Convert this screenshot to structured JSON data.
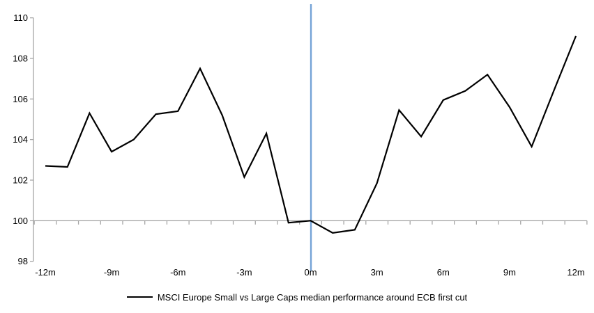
{
  "chart_data": {
    "type": "line",
    "title": "",
    "xlabel": "",
    "ylabel": "",
    "x_months": [
      -12,
      -11,
      -10,
      -9,
      -8,
      -7,
      -6,
      -5,
      -4,
      -3,
      -2,
      -1,
      0,
      1,
      2,
      3,
      4,
      5,
      6,
      7,
      8,
      9,
      10,
      11,
      12
    ],
    "series": [
      {
        "name": "MSCI Europe Small vs Large Caps median performance around ECB first cut",
        "color": "#000000",
        "values": [
          102.7,
          102.65,
          105.3,
          103.4,
          104.0,
          105.25,
          105.4,
          107.5,
          105.2,
          102.15,
          104.3,
          99.9,
          100.0,
          99.4,
          99.55,
          101.85,
          105.45,
          104.15,
          105.95,
          106.4,
          107.2,
          105.6,
          103.65,
          106.4,
          109.1
        ]
      }
    ],
    "y_axis": {
      "min": 98,
      "max": 110,
      "tick_step": 2,
      "tick_labels": [
        "98",
        "100",
        "102",
        "104",
        "106",
        "108",
        "110"
      ]
    },
    "x_axis": {
      "tick_label_months": [
        -12,
        -9,
        -6,
        -3,
        0,
        3,
        6,
        9,
        12
      ],
      "tick_labels": [
        "-12m",
        "-9m",
        "-6m",
        "-3m",
        "0m",
        "3m",
        "6m",
        "9m",
        "12m"
      ],
      "axis_at_value": 100
    },
    "event_line": {
      "at_month": 0,
      "color": "#74A3D6"
    },
    "colors": {
      "axis": "#A6A6A6",
      "series": "#000000",
      "event_line": "#74A3D6",
      "background": "#FFFFFF"
    },
    "legend": {
      "position": "bottom-center",
      "entries": [
        {
          "label": "MSCI Europe Small vs Large Caps median performance around ECB first cut",
          "swatch": "line",
          "color": "#000000"
        }
      ]
    },
    "grid": "off"
  }
}
